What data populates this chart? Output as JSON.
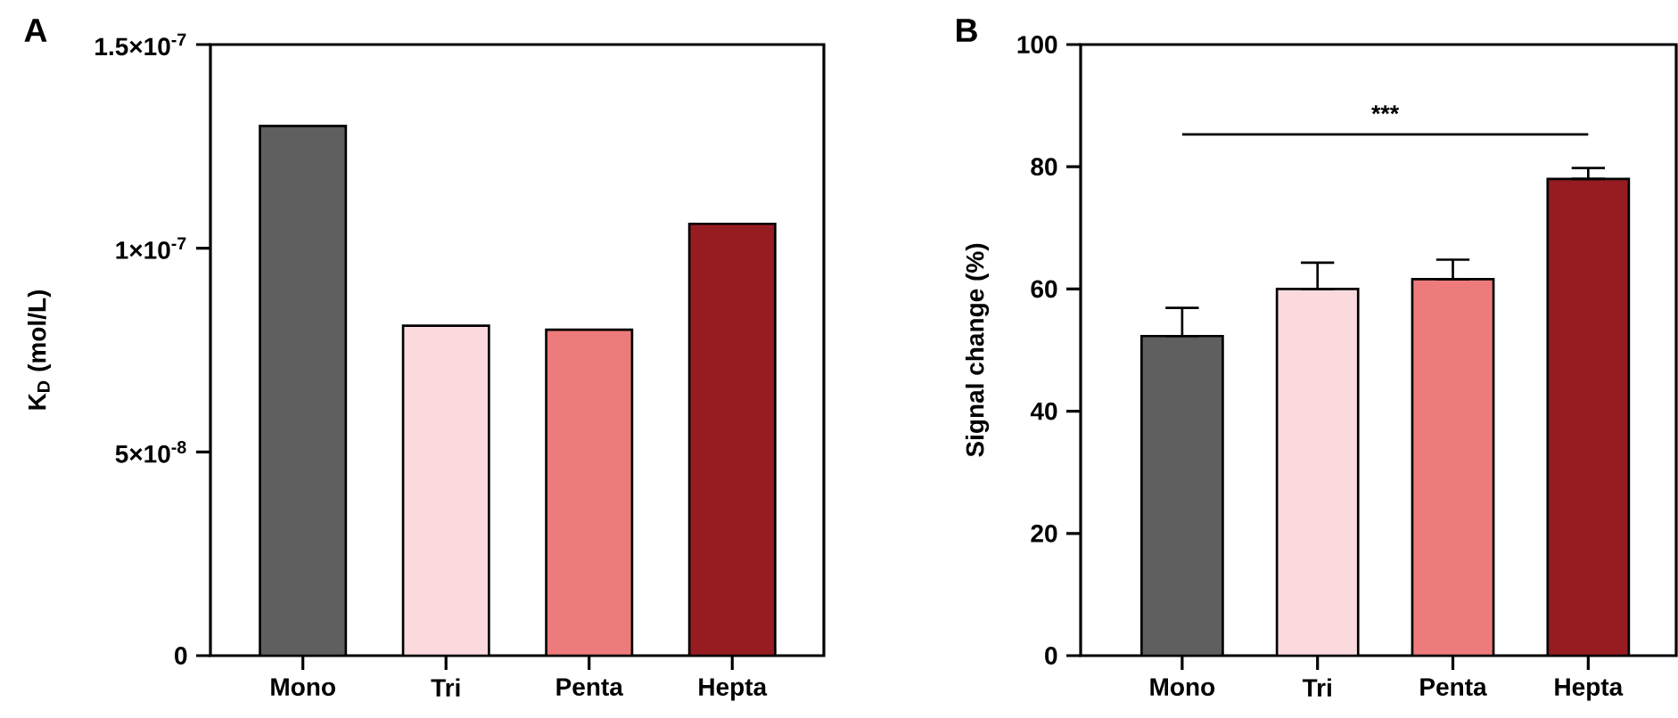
{
  "chart_data": [
    {
      "type": "bar",
      "title": "A",
      "ylabel": "K$_{D}$ (mol/L)",
      "categories": [
        "Mono",
        "Tri",
        "Penta",
        "Hepta"
      ],
      "values": [
        1.3e-07,
        8.1e-08,
        8e-08,
        1.06e-07
      ],
      "colors": [
        "#5f5f5f",
        "#fadadd",
        "#ee7b7b",
        "#961c22"
      ],
      "ylim": [
        0,
        1.5e-07
      ],
      "yticks": [
        0,
        {
          "value": 5e-08,
          "label": "5×10$^{-8}$"
        },
        {
          "value": 1e-07,
          "label": "1×10$^{-7}$"
        },
        {
          "value": 1.5e-07,
          "label": "1.5×10$^{-7}$"
        }
      ]
    },
    {
      "type": "bar",
      "title": "B",
      "ylabel": "Signal change (%)",
      "categories": [
        "Mono",
        "Tri",
        "Penta",
        "Hepta"
      ],
      "values": [
        52.3,
        60,
        61.6,
        78
      ],
      "errors": [
        [
          52.3,
          56.9
        ],
        [
          60,
          64.3
        ],
        [
          61.6,
          64.8
        ],
        [
          78,
          79.8
        ]
      ],
      "colors": [
        "#5f5f5f",
        "#fadadd",
        "#ee7b7b",
        "#961c22"
      ],
      "ylim": [
        0,
        100
      ],
      "yticks": [
        0,
        20,
        40,
        60,
        80,
        100
      ],
      "annotations": [
        "***"
      ]
    }
  ]
}
